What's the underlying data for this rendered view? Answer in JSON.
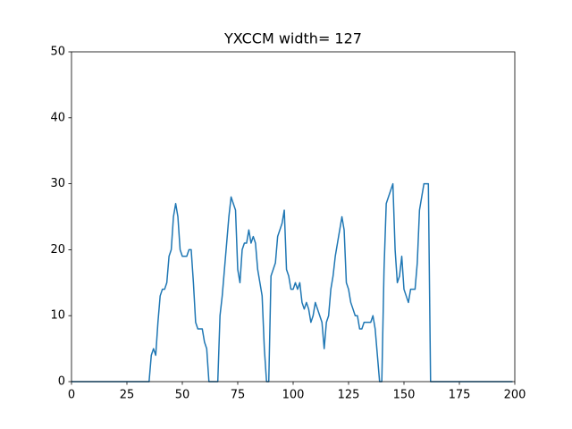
{
  "chart_data": {
    "type": "line",
    "title": "YXCCM width= 127",
    "color": "#1f77b4",
    "x": [
      0,
      1,
      2,
      3,
      4,
      5,
      6,
      7,
      8,
      9,
      10,
      11,
      12,
      13,
      14,
      15,
      16,
      17,
      18,
      19,
      20,
      21,
      22,
      23,
      24,
      25,
      26,
      27,
      28,
      29,
      30,
      31,
      32,
      33,
      34,
      35,
      36,
      37,
      38,
      39,
      40,
      41,
      42,
      43,
      44,
      45,
      46,
      47,
      48,
      49,
      50,
      51,
      52,
      53,
      54,
      55,
      56,
      57,
      58,
      59,
      60,
      61,
      62,
      63,
      64,
      65,
      66,
      67,
      68,
      69,
      70,
      71,
      72,
      73,
      74,
      75,
      76,
      77,
      78,
      79,
      80,
      81,
      82,
      83,
      84,
      85,
      86,
      87,
      88,
      89,
      90,
      91,
      92,
      93,
      94,
      95,
      96,
      97,
      98,
      99,
      100,
      101,
      102,
      103,
      104,
      105,
      106,
      107,
      108,
      109,
      110,
      111,
      112,
      113,
      114,
      115,
      116,
      117,
      118,
      119,
      120,
      121,
      122,
      123,
      124,
      125,
      126,
      127,
      128,
      129,
      130,
      131,
      132,
      133,
      134,
      135,
      136,
      137,
      138,
      139,
      140,
      141,
      142,
      143,
      144,
      145,
      146,
      147,
      148,
      149,
      150,
      151,
      152,
      153,
      154,
      155,
      156,
      157,
      158,
      159,
      160,
      161,
      162,
      163,
      164,
      165,
      166,
      167,
      168,
      169,
      170,
      171,
      172,
      173,
      174,
      175,
      176,
      177,
      178,
      179,
      180,
      181,
      182,
      183,
      184,
      185,
      186,
      187,
      188,
      189,
      190,
      191,
      192,
      193,
      194,
      195,
      196,
      197,
      198,
      199
    ],
    "values": [
      0,
      0,
      0,
      0,
      0,
      0,
      0,
      0,
      0,
      0,
      0,
      0,
      0,
      0,
      0,
      0,
      0,
      0,
      0,
      0,
      0,
      0,
      0,
      0,
      0,
      0,
      0,
      0,
      0,
      0,
      0,
      0,
      0,
      0,
      0,
      0,
      4,
      5,
      4,
      9,
      13,
      14,
      14,
      15,
      19,
      20,
      25,
      27,
      25,
      20,
      19,
      19,
      19,
      20,
      20,
      15,
      9,
      8,
      8,
      8,
      6,
      5,
      0,
      0,
      0,
      0,
      0,
      10,
      13,
      17,
      21,
      25,
      28,
      27,
      26,
      17,
      15,
      20,
      21,
      21,
      23,
      21,
      22,
      21,
      17,
      15,
      13,
      5,
      0,
      0,
      16,
      17,
      18,
      22,
      23,
      24,
      26,
      17,
      16,
      14,
      14,
      15,
      14,
      15,
      12,
      11,
      12,
      11,
      9,
      10,
      12,
      11,
      10,
      9,
      5,
      9,
      10,
      14,
      16,
      19,
      21,
      23,
      25,
      23,
      15,
      14,
      12,
      11,
      10,
      10,
      8,
      8,
      9,
      9,
      9,
      9,
      10,
      8,
      4,
      0,
      0,
      17,
      27,
      28,
      29,
      30,
      20,
      15,
      16,
      19,
      14,
      13,
      12,
      14,
      14,
      14,
      18,
      26,
      28,
      30,
      30,
      30,
      0,
      0,
      0,
      0,
      0,
      0,
      0,
      0,
      0,
      0,
      0,
      0,
      0,
      0,
      0,
      0,
      0,
      0,
      0,
      0,
      0,
      0,
      0,
      0,
      0,
      0,
      0,
      0,
      0,
      0,
      0,
      0,
      0,
      0,
      0,
      0,
      0,
      0
    ],
    "xlim": [
      0,
      200
    ],
    "xticks": [
      0,
      25,
      50,
      75,
      100,
      125,
      150,
      175,
      200
    ],
    "ylim": [
      0,
      50
    ],
    "yticks": [
      0,
      10,
      20,
      30,
      40,
      50
    ],
    "grid": false
  }
}
